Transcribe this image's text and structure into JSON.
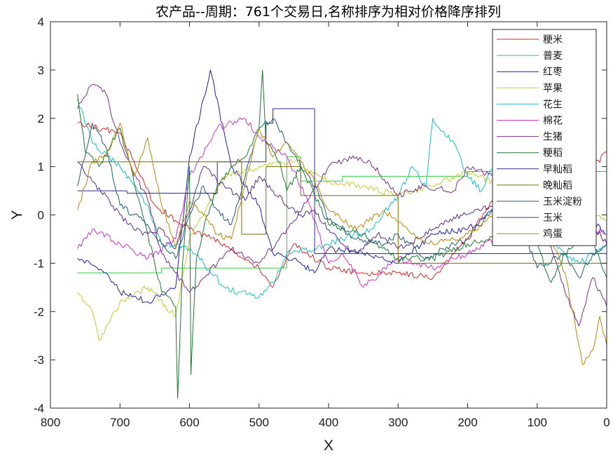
{
  "chart_data": {
    "type": "line",
    "title": "农产品--周期：761个交易日,名称排序为相对价格降序排列",
    "xlabel": "X",
    "ylabel": "Y",
    "xlim": [
      800,
      0
    ],
    "ylim": [
      -4,
      4
    ],
    "x_reversed": true,
    "xticks": [
      "800",
      "700",
      "600",
      "500",
      "400",
      "300",
      "200",
      "100",
      "0"
    ],
    "yticks": [
      "4",
      "3",
      "2",
      "1",
      "0",
      "-1",
      "-2",
      "-3",
      "-4"
    ],
    "grid": false,
    "legend_position": "top-right",
    "series": [
      {
        "name": "粳米",
        "color": "#d62728",
        "x": [
          761,
          700,
          650,
          600,
          550,
          500,
          480,
          450,
          400,
          350,
          300,
          250,
          200,
          150,
          100,
          50,
          20,
          0
        ],
        "values": [
          1.9,
          1.7,
          0.2,
          -0.3,
          -0.6,
          -1.1,
          -1.5,
          -0.6,
          -1.1,
          -1.2,
          -1.2,
          -1.3,
          -0.5,
          0.6,
          0.5,
          0.6,
          1.0,
          1.3
        ]
      },
      {
        "name": "普麦",
        "color": "#2ecc40",
        "x": [
          761,
          700,
          660,
          640,
          580,
          520,
          470,
          460,
          440,
          420,
          380,
          340,
          300,
          200,
          100,
          0
        ],
        "values": [
          -1.2,
          -1.2,
          -1.2,
          -1.1,
          -1.1,
          -1.1,
          -1.1,
          1.2,
          0.7,
          0.7,
          0.8,
          0.8,
          0.8,
          0.9,
          0.9,
          0.9
        ]
      },
      {
        "name": "红枣",
        "color": "#1f1fa8",
        "x": [
          761,
          720,
          700,
          660,
          620,
          600,
          570,
          540,
          500,
          480,
          450,
          420,
          400,
          350,
          300,
          250,
          200,
          150,
          100,
          50,
          0
        ],
        "values": [
          -0.9,
          -1.2,
          -1.6,
          -1.8,
          -1.5,
          1.2,
          3.0,
          1.0,
          0.2,
          -0.8,
          -0.9,
          -1.2,
          -0.7,
          -0.8,
          -1.0,
          -0.4,
          -0.3,
          0.2,
          0.6,
          0.2,
          -0.4
        ]
      },
      {
        "name": "苹果",
        "color": "#c8c832",
        "x": [
          761,
          740,
          730,
          700,
          660,
          620,
          600,
          550,
          500,
          450,
          400,
          350,
          300,
          250,
          200,
          150,
          100,
          50,
          0
        ],
        "values": [
          -1.6,
          -2.0,
          -2.6,
          -1.8,
          -1.5,
          -2.1,
          -0.5,
          0.8,
          1.0,
          1.1,
          0.7,
          0.6,
          0.4,
          0.6,
          0.9,
          0.6,
          0.3,
          0.2,
          -0.1
        ]
      },
      {
        "name": "花生",
        "color": "#17becf",
        "x": [
          761,
          740,
          700,
          660,
          640,
          600,
          580,
          550,
          530,
          500,
          480,
          460,
          420,
          380,
          340,
          300,
          280,
          260,
          250,
          220,
          200,
          180,
          150,
          130,
          100,
          60,
          40,
          0
        ],
        "values": [
          2.4,
          1.5,
          1.0,
          0.2,
          -0.6,
          -0.7,
          -1.0,
          -1.5,
          -1.6,
          -1.7,
          -1.4,
          -0.8,
          -0.7,
          -0.5,
          -0.3,
          0.4,
          1.0,
          0.6,
          2.0,
          1.5,
          0.8,
          0.5,
          1.4,
          0.6,
          -0.2,
          -0.8,
          -1.0,
          -0.6
        ]
      },
      {
        "name": "棉花",
        "color": "#cc33cc",
        "x": [
          761,
          740,
          700,
          660,
          620,
          600,
          560,
          520,
          500,
          480,
          460,
          430,
          400,
          380,
          350,
          300,
          250,
          200,
          160,
          130,
          100,
          80,
          60,
          40,
          20,
          0
        ],
        "values": [
          -0.7,
          -0.3,
          -0.6,
          -0.9,
          -0.5,
          0.8,
          1.8,
          2.0,
          1.6,
          1.4,
          1.2,
          0.3,
          -1.0,
          -0.8,
          -1.5,
          -0.9,
          -1.1,
          -0.8,
          -0.5,
          -0.3,
          0.3,
          0.4,
          0.1,
          -0.1,
          -0.3,
          -0.4
        ]
      },
      {
        "name": "生猪",
        "color": "#7b2d8b",
        "x": [
          761,
          740,
          720,
          700,
          660,
          640,
          600,
          560,
          540,
          500,
          460,
          430,
          400,
          360,
          340,
          300,
          260,
          220,
          200,
          160,
          120,
          100,
          60,
          40,
          20,
          0
        ],
        "values": [
          2.2,
          2.7,
          2.5,
          1.5,
          0.3,
          -0.8,
          -1.6,
          -1.0,
          -0.7,
          -1.0,
          -0.3,
          0.3,
          1.0,
          1.2,
          1.1,
          0.4,
          0.6,
          0.5,
          1.0,
          0.8,
          0.5,
          0.2,
          -1.6,
          -2.3,
          -1.3,
          -1.9
        ]
      },
      {
        "name": "粳稻",
        "color": "#1a7a2e",
        "x": [
          761,
          750,
          730,
          700,
          680,
          660,
          640,
          620,
          617,
          610,
          600,
          598,
          590,
          580,
          560,
          540,
          520,
          500,
          495,
          490,
          470,
          460,
          440,
          420,
          400,
          350,
          300,
          250,
          200,
          150,
          120,
          100,
          80,
          60,
          40,
          20,
          0
        ],
        "values": [
          2.5,
          1.3,
          1.0,
          1.8,
          0.7,
          -0.4,
          -1.6,
          -1.9,
          -3.8,
          -1.0,
          1.0,
          -3.3,
          -0.9,
          -0.3,
          0.6,
          1.0,
          1.2,
          1.8,
          3.0,
          1.5,
          1.1,
          0.5,
          1.0,
          0.4,
          -0.2,
          -0.4,
          -0.9,
          -0.9,
          -0.6,
          -0.4,
          -0.2,
          -0.6,
          -1.4,
          -0.8,
          -0.5,
          -0.6,
          -1.3
        ]
      },
      {
        "name": "早籼稻",
        "color": "#2a2a8c",
        "x": [
          761,
          720,
          700,
          690,
          680,
          660,
          640,
          620,
          600,
          560,
          540,
          500,
          490,
          480,
          460,
          455,
          440,
          425,
          420,
          400,
          350,
          300,
          250,
          200,
          150,
          100,
          50,
          0
        ],
        "values": [
          0.5,
          0.5,
          0.5,
          0.45,
          0.45,
          0.45,
          0.45,
          0.45,
          0.45,
          1.1,
          1.1,
          1.1,
          1.9,
          2.2,
          2.2,
          2.2,
          2.2,
          2.2,
          -0.8,
          -0.8,
          -0.8,
          -0.8,
          -0.8,
          -0.8,
          -0.8,
          -0.8,
          -0.8,
          -0.8
        ]
      },
      {
        "name": "晚籼稻",
        "color": "#7a6a00",
        "x": [
          761,
          720,
          700,
          660,
          640,
          600,
          560,
          540,
          525,
          500,
          490,
          460,
          440,
          400,
          350,
          300,
          250,
          200,
          150,
          100,
          50,
          0
        ],
        "values": [
          1.1,
          1.1,
          1.1,
          1.1,
          1.1,
          1.1,
          1.1,
          1.1,
          -0.4,
          -0.4,
          1.0,
          1.0,
          0.4,
          0.4,
          0.4,
          -1.0,
          -1.0,
          -1.0,
          -1.0,
          -1.0,
          -1.0,
          -1.0
        ]
      },
      {
        "name": "玉米淀粉",
        "color": "#1a5c6e",
        "x": [
          761,
          740,
          720,
          700,
          680,
          660,
          640,
          620,
          600,
          580,
          560,
          540,
          500,
          480,
          460,
          440,
          420,
          400,
          360,
          320,
          300,
          260,
          220,
          200,
          160,
          130,
          100,
          60,
          40,
          20,
          0
        ],
        "values": [
          0.6,
          1.9,
          1.4,
          0.2,
          0.0,
          -0.2,
          -0.6,
          -0.9,
          0.0,
          0.6,
          0.1,
          -0.2,
          1.8,
          2.0,
          1.5,
          1.0,
          0.6,
          -0.1,
          -0.5,
          -0.6,
          -0.4,
          -0.9,
          -0.6,
          -0.5,
          0.2,
          0.0,
          -1.1,
          -0.8,
          -1.3,
          -0.8,
          -0.6
        ]
      },
      {
        "name": "玉米",
        "color": "#5b2c83",
        "x": [
          761,
          740,
          720,
          700,
          680,
          660,
          640,
          620,
          600,
          580,
          550,
          520,
          500,
          480,
          460,
          440,
          420,
          400,
          380,
          360,
          330,
          300,
          270,
          240,
          210,
          180,
          150,
          120,
          100,
          80,
          60,
          40,
          20,
          0
        ],
        "values": [
          1.1,
          0.7,
          0.4,
          0.0,
          -0.3,
          -0.4,
          -0.3,
          -0.7,
          0.1,
          1.0,
          0.6,
          0.3,
          0.8,
          0.5,
          0.2,
          0.0,
          0.1,
          -0.3,
          -0.6,
          -0.8,
          -0.4,
          -0.7,
          -0.5,
          -0.2,
          0.0,
          0.1,
          0.3,
          0.2,
          0.0,
          -0.2,
          -0.1,
          -0.3,
          -0.2,
          -0.6
        ]
      },
      {
        "name": "鸡蛋",
        "color": "#b8860b",
        "x": [
          761,
          740,
          720,
          700,
          680,
          660,
          640,
          620,
          600,
          580,
          560,
          540,
          500,
          480,
          460,
          440,
          420,
          400,
          360,
          320,
          280,
          250,
          220,
          200,
          160,
          130,
          100,
          80,
          60,
          45,
          35,
          20,
          10,
          0
        ],
        "values": [
          0.1,
          1.1,
          1.2,
          1.9,
          0.8,
          1.6,
          0.2,
          -0.7,
          0.3,
          0.0,
          -0.4,
          -0.5,
          1.8,
          1.2,
          1.5,
          1.1,
          0.7,
          0.1,
          -0.3,
          0.1,
          -0.4,
          -0.6,
          -0.5,
          -0.4,
          0.0,
          0.1,
          0.0,
          -0.5,
          -1.2,
          -2.3,
          -3.1,
          -2.8,
          -2.1,
          -2.7
        ]
      }
    ]
  }
}
